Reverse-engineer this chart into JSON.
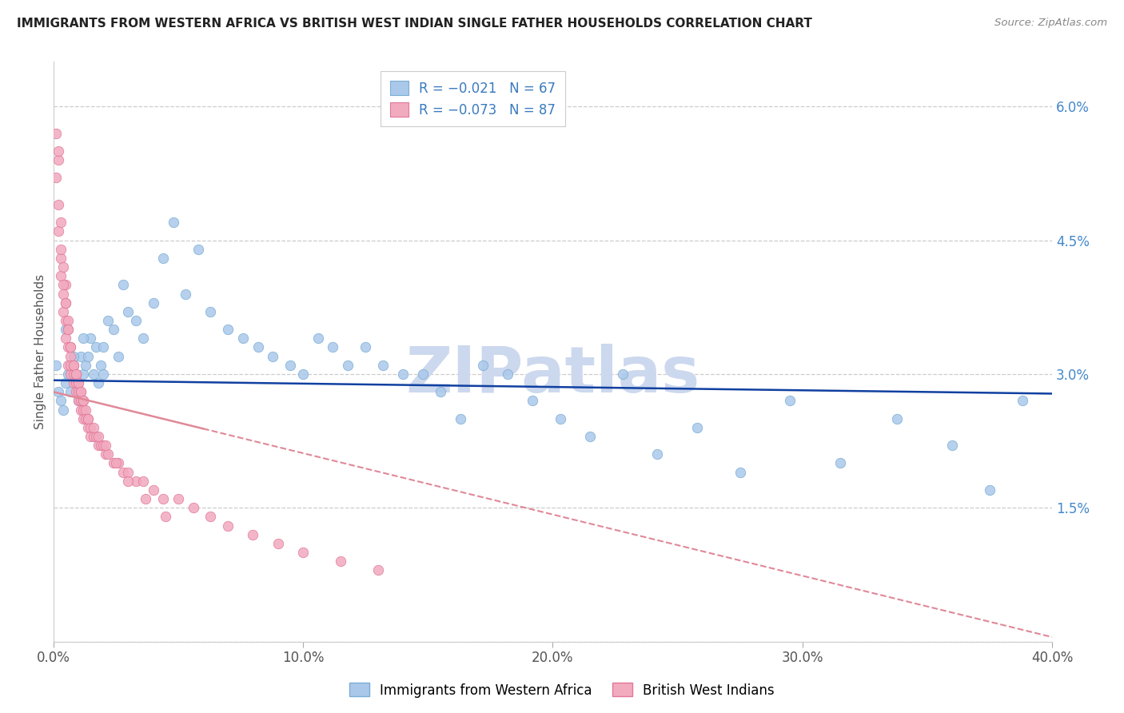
{
  "title": "IMMIGRANTS FROM WESTERN AFRICA VS BRITISH WEST INDIAN SINGLE FATHER HOUSEHOLDS CORRELATION CHART",
  "source": "Source: ZipAtlas.com",
  "ylabel": "Single Father Households",
  "xlim": [
    0.0,
    0.4
  ],
  "ylim": [
    0.0,
    0.065
  ],
  "yticks": [
    0.0,
    0.015,
    0.03,
    0.045,
    0.06
  ],
  "ytick_labels_right": [
    "",
    "1.5%",
    "3.0%",
    "4.5%",
    "6.0%"
  ],
  "xticks": [
    0.0,
    0.1,
    0.2,
    0.3,
    0.4
  ],
  "xtick_labels": [
    "0.0%",
    "10.0%",
    "20.0%",
    "30.0%",
    "40.0%"
  ],
  "series1_color": "#aac8ea",
  "series1_edge": "#7aadd4",
  "series2_color": "#f2aabf",
  "series2_edge": "#e07898",
  "line1_color": "#1040a0",
  "line2_color": "#e08898",
  "line1_y_start": 0.0293,
  "line1_y_end": 0.0278,
  "line2_y_start": 0.028,
  "line2_y_end": 0.0005,
  "line2_solid_end_x": 0.06,
  "watermark": "ZIPatlas",
  "watermark_color": "#ccd8ee",
  "background_color": "#ffffff",
  "series1_x": [
    0.001,
    0.002,
    0.003,
    0.004,
    0.005,
    0.006,
    0.007,
    0.008,
    0.009,
    0.01,
    0.011,
    0.012,
    0.013,
    0.014,
    0.015,
    0.016,
    0.017,
    0.018,
    0.019,
    0.02,
    0.022,
    0.024,
    0.026,
    0.028,
    0.03,
    0.033,
    0.036,
    0.04,
    0.044,
    0.048,
    0.053,
    0.058,
    0.063,
    0.07,
    0.076,
    0.082,
    0.088,
    0.095,
    0.1,
    0.106,
    0.112,
    0.118,
    0.125,
    0.132,
    0.14,
    0.148,
    0.155,
    0.163,
    0.172,
    0.182,
    0.192,
    0.203,
    0.215,
    0.228,
    0.242,
    0.258,
    0.275,
    0.295,
    0.315,
    0.338,
    0.36,
    0.375,
    0.388,
    0.005,
    0.008,
    0.012,
    0.02
  ],
  "series1_y": [
    0.031,
    0.028,
    0.027,
    0.026,
    0.029,
    0.03,
    0.028,
    0.031,
    0.029,
    0.027,
    0.032,
    0.03,
    0.031,
    0.032,
    0.034,
    0.03,
    0.033,
    0.029,
    0.031,
    0.033,
    0.036,
    0.035,
    0.032,
    0.04,
    0.037,
    0.036,
    0.034,
    0.038,
    0.043,
    0.047,
    0.039,
    0.044,
    0.037,
    0.035,
    0.034,
    0.033,
    0.032,
    0.031,
    0.03,
    0.034,
    0.033,
    0.031,
    0.033,
    0.031,
    0.03,
    0.03,
    0.028,
    0.025,
    0.031,
    0.03,
    0.027,
    0.025,
    0.023,
    0.03,
    0.021,
    0.024,
    0.019,
    0.027,
    0.02,
    0.025,
    0.022,
    0.017,
    0.027,
    0.035,
    0.032,
    0.034,
    0.03
  ],
  "series2_x": [
    0.001,
    0.001,
    0.002,
    0.002,
    0.002,
    0.003,
    0.003,
    0.003,
    0.004,
    0.004,
    0.004,
    0.005,
    0.005,
    0.005,
    0.005,
    0.006,
    0.006,
    0.006,
    0.006,
    0.007,
    0.007,
    0.007,
    0.007,
    0.008,
    0.008,
    0.008,
    0.009,
    0.009,
    0.009,
    0.01,
    0.01,
    0.01,
    0.011,
    0.011,
    0.011,
    0.012,
    0.012,
    0.012,
    0.013,
    0.013,
    0.014,
    0.014,
    0.015,
    0.015,
    0.016,
    0.017,
    0.018,
    0.019,
    0.02,
    0.021,
    0.022,
    0.024,
    0.026,
    0.028,
    0.03,
    0.033,
    0.036,
    0.04,
    0.044,
    0.05,
    0.056,
    0.063,
    0.07,
    0.08,
    0.09,
    0.1,
    0.115,
    0.13,
    0.002,
    0.003,
    0.004,
    0.005,
    0.006,
    0.007,
    0.008,
    0.009,
    0.01,
    0.011,
    0.012,
    0.014,
    0.016,
    0.018,
    0.021,
    0.025,
    0.03,
    0.037,
    0.045
  ],
  "series2_y": [
    0.057,
    0.052,
    0.054,
    0.049,
    0.046,
    0.047,
    0.043,
    0.041,
    0.042,
    0.039,
    0.037,
    0.038,
    0.036,
    0.034,
    0.04,
    0.036,
    0.033,
    0.031,
    0.035,
    0.032,
    0.03,
    0.031,
    0.033,
    0.03,
    0.029,
    0.031,
    0.029,
    0.028,
    0.03,
    0.028,
    0.027,
    0.029,
    0.027,
    0.026,
    0.028,
    0.026,
    0.025,
    0.027,
    0.026,
    0.025,
    0.025,
    0.024,
    0.024,
    0.023,
    0.023,
    0.023,
    0.022,
    0.022,
    0.022,
    0.021,
    0.021,
    0.02,
    0.02,
    0.019,
    0.019,
    0.018,
    0.018,
    0.017,
    0.016,
    0.016,
    0.015,
    0.014,
    0.013,
    0.012,
    0.011,
    0.01,
    0.009,
    0.008,
    0.055,
    0.044,
    0.04,
    0.038,
    0.035,
    0.033,
    0.031,
    0.03,
    0.029,
    0.028,
    0.027,
    0.025,
    0.024,
    0.023,
    0.022,
    0.02,
    0.018,
    0.016,
    0.014
  ]
}
